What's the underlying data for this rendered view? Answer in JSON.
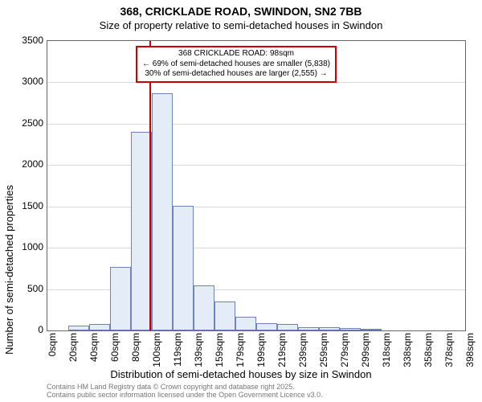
{
  "title_line1": "368, CRICKLADE ROAD, SWINDON, SN2 7BB",
  "title_line2": "Size of property relative to semi-detached houses in Swindon",
  "chart": {
    "type": "histogram",
    "ylabel": "Number of semi-detached properties",
    "xlabel": "Distribution of semi-detached houses by size in Swindon",
    "ylim": [
      0,
      3500
    ],
    "ytick_step": 500,
    "yticks": [
      0,
      500,
      1000,
      1500,
      2000,
      2500,
      3000,
      3500
    ],
    "x_tick_labels": [
      "0sqm",
      "20sqm",
      "40sqm",
      "60sqm",
      "80sqm",
      "100sqm",
      "119sqm",
      "139sqm",
      "159sqm",
      "179sqm",
      "199sqm",
      "219sqm",
      "239sqm",
      "259sqm",
      "279sqm",
      "299sqm",
      "318sqm",
      "338sqm",
      "358sqm",
      "378sqm",
      "398sqm"
    ],
    "values": [
      0,
      60,
      80,
      770,
      2400,
      2870,
      1510,
      540,
      350,
      170,
      90,
      80,
      40,
      40,
      30,
      20,
      0,
      0,
      0,
      0
    ],
    "bar_fill": "#e4ecf7",
    "bar_stroke": "#6e84b8",
    "background_color": "#ffffff",
    "grid_color": "#d9d9d9",
    "axis_color": "#666666",
    "tick_fontsize": 12,
    "label_fontsize": 13,
    "reference_line": {
      "value_sqm": 98,
      "color": "#cc0000",
      "width": 2
    },
    "annotation": {
      "border_color": "#cc0000",
      "bg_color": "#ffffff",
      "fontsize": 10,
      "lines": [
        "368 CRICKLADE ROAD: 98sqm",
        "← 69% of semi-detached houses are smaller (5,838)",
        "30% of semi-detached houses are larger (2,555) →"
      ]
    }
  },
  "footer_line1": "Contains HM Land Registry data © Crown copyright and database right 2025.",
  "footer_line2": "Contains public sector information licensed under the Open Government Licence v3.0."
}
